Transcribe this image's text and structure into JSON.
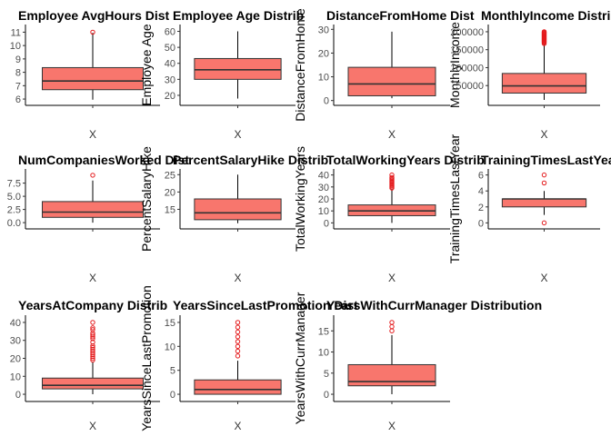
{
  "style": {
    "box_fill": "#F8766D",
    "outlier_color": "#E41A1C",
    "line_color": "#000000",
    "axis_color": "#000000"
  },
  "chart_data": [
    {
      "type": "box",
      "title": "Employee AvgHours Dist",
      "ylabel": "Employee AvgHours",
      "categories": [
        "X"
      ],
      "ylim": [
        5.8,
        11.3
      ],
      "yticks": [
        6,
        7,
        8,
        9,
        10,
        11
      ],
      "ytick_labels": [
        "6",
        "7",
        "8",
        "9",
        "10",
        "11"
      ],
      "stats": {
        "whisker_low": 5.95,
        "q1": 6.7,
        "median": 7.35,
        "q3": 8.35,
        "whisker_high": 10.95
      },
      "outliers": [
        11.0
      ]
    },
    {
      "type": "box",
      "title": "Employee Age Distrib",
      "ylabel": "Employee Age",
      "categories": [
        "X"
      ],
      "ylim": [
        16,
        62
      ],
      "yticks": [
        20,
        30,
        40,
        50,
        60
      ],
      "ytick_labels": [
        "20",
        "30",
        "40",
        "50",
        "60"
      ],
      "stats": {
        "whisker_low": 18,
        "q1": 30,
        "median": 36,
        "q3": 43,
        "whisker_high": 60
      },
      "outliers": []
    },
    {
      "type": "box",
      "title": "DistanceFromHome Dist",
      "ylabel": "DistanceFromHome",
      "categories": [
        "X"
      ],
      "ylim": [
        -0.5,
        30.5
      ],
      "yticks": [
        0,
        10,
        20,
        30
      ],
      "ytick_labels": [
        "0",
        "10",
        "20",
        "30"
      ],
      "stats": {
        "whisker_low": 1,
        "q1": 2,
        "median": 7,
        "q3": 14,
        "whisker_high": 29
      },
      "outliers": []
    },
    {
      "type": "box",
      "title": "MonthlyIncome Distrib",
      "ylabel": "MonthlyIncome",
      "categories": [
        "X"
      ],
      "ylim": [
        5000,
        210000
      ],
      "yticks": [
        50000,
        100000,
        150000,
        200000
      ],
      "ytick_labels": [
        "50000",
        "100000",
        "150000",
        "200000"
      ],
      "stats": {
        "whisker_low": 10090,
        "q1": 29110,
        "median": 49190,
        "q3": 83800,
        "whisker_high": 165000
      },
      "outliers": [
        167000,
        170000,
        172000,
        174000,
        176000,
        178000,
        180000,
        182000,
        184000,
        186000,
        188000,
        190000,
        192000,
        194000,
        196000,
        198000,
        199990
      ]
    },
    {
      "type": "box",
      "title": "NumCompaniesWorked Dist",
      "ylabel": "NumCompaniesWorked",
      "categories": [
        "X"
      ],
      "ylim": [
        -0.5,
        9.5
      ],
      "yticks": [
        0,
        2.5,
        5,
        7.5
      ],
      "ytick_labels": [
        "0.0",
        "2.5",
        "5.0",
        "7.5"
      ],
      "stats": {
        "whisker_low": 0,
        "q1": 1,
        "median": 2,
        "q3": 4,
        "whisker_high": 8
      },
      "outliers": [
        9
      ]
    },
    {
      "type": "box",
      "title": "PercentSalaryHike Distrib",
      "ylabel": "PercentSalaryHike",
      "categories": [
        "X"
      ],
      "ylim": [
        10.4,
        25.6
      ],
      "yticks": [
        15,
        20,
        25
      ],
      "ytick_labels": [
        "15",
        "20",
        "25"
      ],
      "stats": {
        "whisker_low": 11,
        "q1": 12,
        "median": 14,
        "q3": 18,
        "whisker_high": 25
      },
      "outliers": []
    },
    {
      "type": "box",
      "title": "TotalWorkingYears Distrib",
      "ylabel": "TotalWorkingYears",
      "categories": [
        "X"
      ],
      "ylim": [
        -2,
        42
      ],
      "yticks": [
        0,
        10,
        20,
        30,
        40
      ],
      "ytick_labels": [
        "0",
        "10",
        "20",
        "30",
        "40"
      ],
      "stats": {
        "whisker_low": 0,
        "q1": 6,
        "median": 10,
        "q3": 15,
        "whisker_high": 28
      },
      "outliers": [
        29,
        30,
        31,
        32,
        33,
        34,
        35,
        36,
        37,
        38,
        40
      ]
    },
    {
      "type": "box",
      "title": "TrainingTimesLastYear Dist",
      "ylabel": "TrainingTimesLastYear",
      "categories": [
        "X"
      ],
      "ylim": [
        -0.3,
        6.3
      ],
      "yticks": [
        0,
        2,
        4,
        6
      ],
      "ytick_labels": [
        "0",
        "2",
        "4",
        "6"
      ],
      "stats": {
        "whisker_low": 1,
        "q1": 2,
        "median": 3,
        "q3": 3,
        "whisker_high": 4
      },
      "outliers": [
        0,
        5,
        6
      ]
    },
    {
      "type": "box",
      "title": "YearsAtCompany Distrib",
      "ylabel": "YearsAtCompany",
      "categories": [
        "X"
      ],
      "ylim": [
        -2,
        42
      ],
      "yticks": [
        0,
        10,
        20,
        30,
        40
      ],
      "ytick_labels": [
        "0",
        "10",
        "20",
        "30",
        "40"
      ],
      "stats": {
        "whisker_low": 0,
        "q1": 3,
        "median": 5,
        "q3": 9,
        "whisker_high": 18
      },
      "outliers": [
        19,
        20,
        21,
        22,
        23,
        24,
        25,
        26,
        27,
        29,
        31,
        32,
        33,
        34,
        36,
        37,
        40
      ]
    },
    {
      "type": "box",
      "title": "YearsSinceLastPromotion Dist",
      "ylabel": "YearsSinceLastPromotion",
      "categories": [
        "X"
      ],
      "ylim": [
        -0.75,
        15.75
      ],
      "yticks": [
        0,
        5,
        10,
        15
      ],
      "ytick_labels": [
        "0",
        "5",
        "10",
        "15"
      ],
      "stats": {
        "whisker_low": 0,
        "q1": 0,
        "median": 1,
        "q3": 3,
        "whisker_high": 7
      },
      "outliers": [
        8,
        9,
        10,
        11,
        12,
        13,
        14,
        15
      ]
    },
    {
      "type": "box",
      "title": "YearsWithCurrManager Distribution",
      "ylabel": "YearsWithCurrManager",
      "categories": [
        "X"
      ],
      "ylim": [
        -0.85,
        17.85
      ],
      "yticks": [
        0,
        5,
        10,
        15
      ],
      "ytick_labels": [
        "0",
        "5",
        "10",
        "15"
      ],
      "stats": {
        "whisker_low": 0,
        "q1": 2,
        "median": 3,
        "q3": 7,
        "whisker_high": 14
      },
      "outliers": [
        15,
        16,
        17
      ]
    }
  ]
}
